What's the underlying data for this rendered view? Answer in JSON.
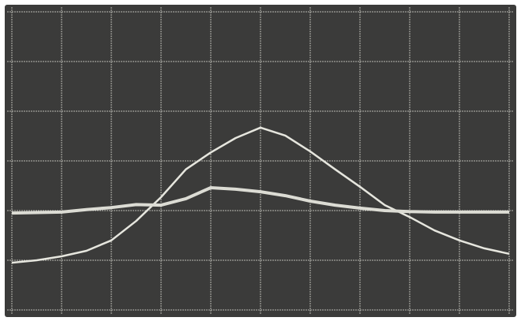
{
  "chart_data": {
    "type": "line",
    "x": [
      0,
      0.5,
      1,
      1.5,
      2,
      2.5,
      3,
      3.5,
      4,
      4.5,
      5,
      5.5,
      6,
      6.5,
      7,
      7.5,
      8,
      8.5,
      9,
      9.5,
      10
    ],
    "series": [
      {
        "color": "#e6e6de",
        "values": [
          0.95,
          1.0,
          1.08,
          1.19,
          1.4,
          1.79,
          2.27,
          2.83,
          3.17,
          3.46,
          3.67,
          3.51,
          3.19,
          2.83,
          2.48,
          2.11,
          1.87,
          1.6,
          1.4,
          1.24,
          1.13
        ]
      },
      {
        "color": "#dcdcd4",
        "values": [
          1.95,
          1.96,
          1.97,
          2.02,
          2.06,
          2.12,
          2.11,
          2.24,
          2.46,
          2.43,
          2.38,
          2.3,
          2.19,
          2.11,
          2.05,
          2.0,
          1.98,
          1.97,
          1.97,
          1.97,
          1.97
        ]
      }
    ],
    "xlim": [
      0,
      10
    ],
    "ylim": [
      0,
      6
    ],
    "xticks": [
      0,
      1,
      2,
      3,
      4,
      5,
      6,
      7,
      8,
      9,
      10
    ],
    "yticks": [
      0,
      1,
      2,
      3,
      4,
      5,
      6
    ],
    "grid": true,
    "background": "#3b3b3a",
    "grid_color": "#d8d8d0"
  }
}
